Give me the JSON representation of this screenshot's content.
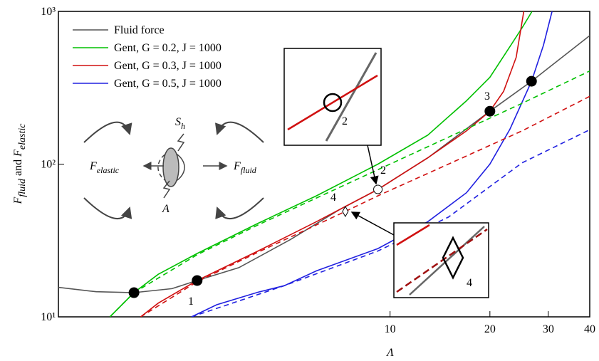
{
  "chart_data": {
    "type": "line",
    "xlog": true,
    "ylog": true,
    "xlabel": "Λ",
    "ylabel": [
      "F",
      "fluid",
      " and ",
      "F",
      "elastic"
    ],
    "xlim": [
      1,
      40
    ],
    "ylim": [
      10,
      1000
    ],
    "xticks": [
      10,
      20,
      30,
      40
    ],
    "yticks": [
      {
        "value": 10,
        "label": "10¹"
      },
      {
        "value": 100,
        "label": "10²"
      },
      {
        "value": 1000,
        "label": "10³"
      }
    ],
    "legend": "upper left",
    "series": [
      {
        "name": "Fluid force",
        "color": "#555555",
        "dash": false,
        "x": [
          1,
          1.3,
          1.69,
          2.2,
          2.62,
          3.5,
          5,
          7,
          9.19,
          13,
          20,
          26.7,
          40
        ],
        "values": [
          15.6,
          14.6,
          14.4,
          15.3,
          17.3,
          21,
          32,
          50,
          68.3,
          110,
          222,
          349,
          694
        ]
      },
      {
        "name": "Gent, G = 0.2, J = 1000",
        "color": "#00c000",
        "dash": false,
        "x": [
          1.43,
          1.69,
          2,
          2.62,
          4,
          6,
          9.19,
          13,
          17,
          20,
          23,
          25,
          26.8
        ],
        "values": [
          10,
          14.4,
          19,
          26,
          41,
          62,
          100,
          155,
          260,
          370,
          590,
          780,
          1000
        ]
      },
      {
        "name": "Gent, G = 0.3, J = 1000",
        "color": "#d01010",
        "dash": false,
        "x": [
          1.77,
          2,
          2.62,
          4,
          6,
          9.19,
          13,
          17,
          20,
          22,
          24,
          25.3
        ],
        "values": [
          10,
          12.3,
          17.3,
          27,
          42,
          68.3,
          110,
          165,
          222,
          300,
          500,
          1000
        ]
      },
      {
        "name": "Gent, G = 0.5, J = 1000",
        "color": "#2020e0",
        "dash": false,
        "x": [
          2.52,
          3,
          4,
          4.8,
          6,
          9.19,
          13,
          17,
          20,
          23,
          26.7,
          29,
          30.8
        ],
        "values": [
          10,
          12,
          14.5,
          16,
          20,
          28,
          42,
          65,
          100,
          170,
          349,
          600,
          1000
        ]
      },
      {
        "color": "#00c000",
        "dash": true,
        "x": [
          1.43,
          1.69,
          2.62,
          4,
          6,
          9.19,
          15,
          25,
          40
        ],
        "values": [
          10,
          14.4,
          25.5,
          40,
          60,
          92,
          150,
          250,
          407
        ]
      },
      {
        "color": "#d01010",
        "dash": true,
        "x": [
          1.77,
          2.62,
          4,
          7.33,
          9.19,
          15,
          25,
          40
        ],
        "values": [
          10,
          17,
          26.5,
          49,
          62,
          100,
          165,
          278
        ]
      },
      {
        "color": "#2020e0",
        "dash": true,
        "x": [
          2.52,
          4.8,
          9.19,
          15,
          25,
          40
        ],
        "values": [
          10,
          16,
          27,
          45,
          102,
          168
        ]
      }
    ],
    "markers": [
      {
        "marker": "filled-circle",
        "x": 1.69,
        "y": 14.4
      },
      {
        "marker": "filled-circle",
        "x": 2.62,
        "y": 17.3
      },
      {
        "marker": "filled-circle",
        "x": 20,
        "y": 222
      },
      {
        "marker": "filled-circle",
        "x": 26.7,
        "y": 349
      },
      {
        "marker": "open-circle",
        "x": 9.19,
        "y": 68.3
      },
      {
        "marker": "diamond",
        "x": 7.33,
        "y": 49
      }
    ],
    "annotations": [
      "1",
      "2",
      "3",
      "4"
    ],
    "inset_labels": [
      "2",
      "4"
    ],
    "diagram_labels": {
      "shear": [
        "S",
        "h"
      ],
      "elastic": [
        "F",
        "elastic"
      ],
      "fluid": [
        "F",
        "fluid"
      ],
      "area": "A"
    }
  }
}
